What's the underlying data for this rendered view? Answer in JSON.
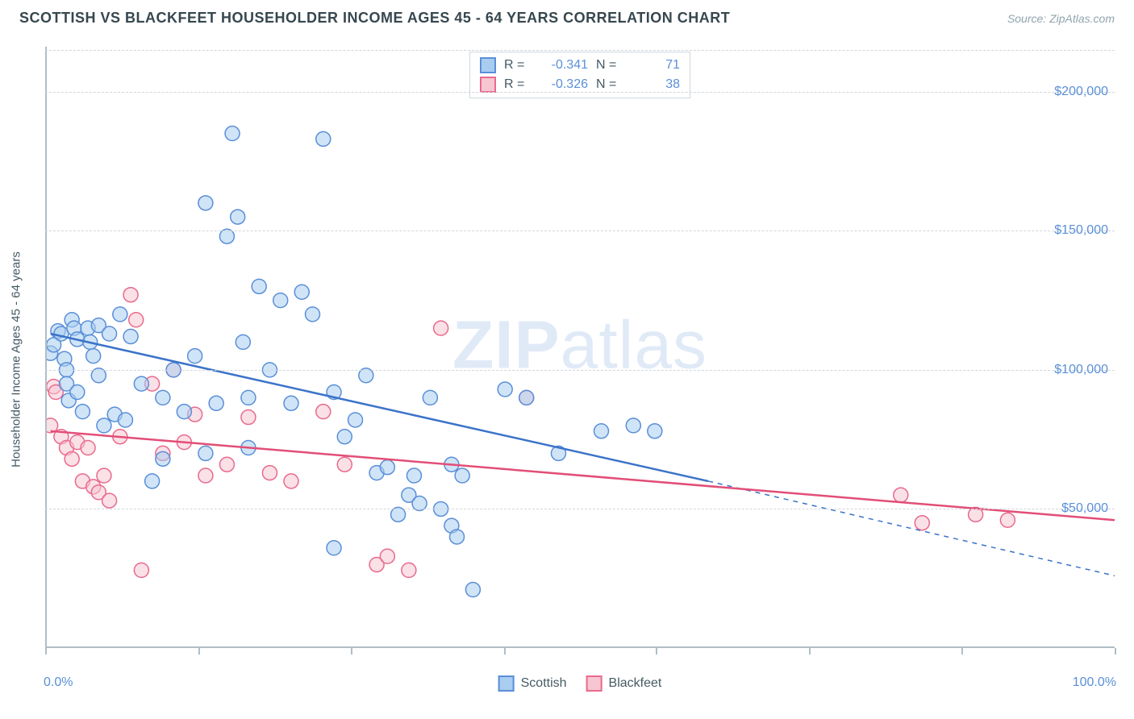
{
  "header": {
    "title": "SCOTTISH VS BLACKFEET HOUSEHOLDER INCOME AGES 45 - 64 YEARS CORRELATION CHART",
    "source_label": "Source:",
    "source_value": "ZipAtlas.com"
  },
  "watermark": {
    "part1": "ZIP",
    "part2": "atlas"
  },
  "chart": {
    "type": "scatter",
    "ylabel": "Householder Income Ages 45 - 64 years",
    "xlim": [
      0,
      100
    ],
    "ylim": [
      0,
      215000
    ],
    "axis_baseline_y": 0,
    "xticks_pct": [
      0,
      14.3,
      28.6,
      42.9,
      57.1,
      71.4,
      85.7,
      100
    ],
    "xtick_labels": {
      "left": "0.0%",
      "right": "100.0%"
    },
    "yticks": [
      50000,
      100000,
      150000,
      200000
    ],
    "ytick_labels": [
      "$50,000",
      "$100,000",
      "$150,000",
      "$200,000"
    ],
    "grid_color": "#d0d6db",
    "axis_color": "#b0bec5",
    "background_color": "#ffffff",
    "marker_radius": 9,
    "marker_stroke_width": 1.5,
    "trend_width_solid": 2.5,
    "trend_width_dash": 1.5,
    "series": {
      "scottish": {
        "label": "Scottish",
        "fill": "#a9cdf0",
        "stroke": "#5a8fd8",
        "fill_opacity": 0.55,
        "r": "-0.341",
        "n": "71",
        "trend": {
          "x1": 0.5,
          "y1": 113000,
          "x2": 62,
          "y2": 60000,
          "dash_to_x": 100,
          "dash_to_y": 26000,
          "color": "#3b73c9"
        },
        "points": [
          [
            0.5,
            106000
          ],
          [
            0.8,
            109000
          ],
          [
            1.2,
            114000
          ],
          [
            1.5,
            113000
          ],
          [
            1.8,
            104000
          ],
          [
            2,
            100000
          ],
          [
            2,
            95000
          ],
          [
            2.2,
            89000
          ],
          [
            2.5,
            118000
          ],
          [
            2.7,
            115000
          ],
          [
            3,
            111000
          ],
          [
            3,
            92000
          ],
          [
            3.5,
            85000
          ],
          [
            4,
            115000
          ],
          [
            4.2,
            110000
          ],
          [
            4.5,
            105000
          ],
          [
            5,
            116000
          ],
          [
            5,
            98000
          ],
          [
            5.5,
            80000
          ],
          [
            6,
            113000
          ],
          [
            6.5,
            84000
          ],
          [
            7,
            120000
          ],
          [
            7.5,
            82000
          ],
          [
            8,
            112000
          ],
          [
            9,
            95000
          ],
          [
            10,
            60000
          ],
          [
            11,
            90000
          ],
          [
            11,
            68000
          ],
          [
            12,
            100000
          ],
          [
            13,
            85000
          ],
          [
            14,
            105000
          ],
          [
            15,
            160000
          ],
          [
            15,
            70000
          ],
          [
            16,
            88000
          ],
          [
            17,
            148000
          ],
          [
            17.5,
            185000
          ],
          [
            18,
            155000
          ],
          [
            18.5,
            110000
          ],
          [
            19,
            90000
          ],
          [
            19,
            72000
          ],
          [
            20,
            130000
          ],
          [
            21,
            100000
          ],
          [
            22,
            125000
          ],
          [
            23,
            88000
          ],
          [
            24,
            128000
          ],
          [
            25,
            120000
          ],
          [
            26,
            183000
          ],
          [
            27,
            92000
          ],
          [
            27,
            36000
          ],
          [
            28,
            76000
          ],
          [
            29,
            82000
          ],
          [
            30,
            98000
          ],
          [
            31,
            63000
          ],
          [
            32,
            65000
          ],
          [
            33,
            48000
          ],
          [
            34,
            55000
          ],
          [
            34.5,
            62000
          ],
          [
            35,
            52000
          ],
          [
            36,
            90000
          ],
          [
            37,
            50000
          ],
          [
            38,
            66000
          ],
          [
            38,
            44000
          ],
          [
            38.5,
            40000
          ],
          [
            39,
            62000
          ],
          [
            40,
            21000
          ],
          [
            43,
            93000
          ],
          [
            45,
            90000
          ],
          [
            48,
            70000
          ],
          [
            52,
            78000
          ],
          [
            55,
            80000
          ],
          [
            57,
            78000
          ]
        ]
      },
      "blackfeet": {
        "label": "Blackfeet",
        "fill": "#f6c7d3",
        "stroke": "#e96a8d",
        "fill_opacity": 0.55,
        "r": "-0.326",
        "n": "38",
        "trend": {
          "x1": 0.5,
          "y1": 78000,
          "x2": 100,
          "y2": 46000,
          "color": "#e24e77"
        },
        "points": [
          [
            0.5,
            80000
          ],
          [
            0.8,
            94000
          ],
          [
            1,
            92000
          ],
          [
            1.5,
            76000
          ],
          [
            2,
            72000
          ],
          [
            2.5,
            68000
          ],
          [
            3,
            74000
          ],
          [
            3.5,
            60000
          ],
          [
            4,
            72000
          ],
          [
            4.5,
            58000
          ],
          [
            5,
            56000
          ],
          [
            5.5,
            62000
          ],
          [
            6,
            53000
          ],
          [
            7,
            76000
          ],
          [
            8,
            127000
          ],
          [
            8.5,
            118000
          ],
          [
            9,
            28000
          ],
          [
            10,
            95000
          ],
          [
            11,
            70000
          ],
          [
            12,
            100000
          ],
          [
            13,
            74000
          ],
          [
            14,
            84000
          ],
          [
            15,
            62000
          ],
          [
            17,
            66000
          ],
          [
            19,
            83000
          ],
          [
            21,
            63000
          ],
          [
            23,
            60000
          ],
          [
            26,
            85000
          ],
          [
            28,
            66000
          ],
          [
            31,
            30000
          ],
          [
            32,
            33000
          ],
          [
            34,
            28000
          ],
          [
            37,
            115000
          ],
          [
            45,
            90000
          ],
          [
            80,
            55000
          ],
          [
            82,
            45000
          ],
          [
            87,
            48000
          ],
          [
            90,
            46000
          ]
        ]
      }
    },
    "legend_bottom": [
      "Scottish",
      "Blackfeet"
    ]
  }
}
